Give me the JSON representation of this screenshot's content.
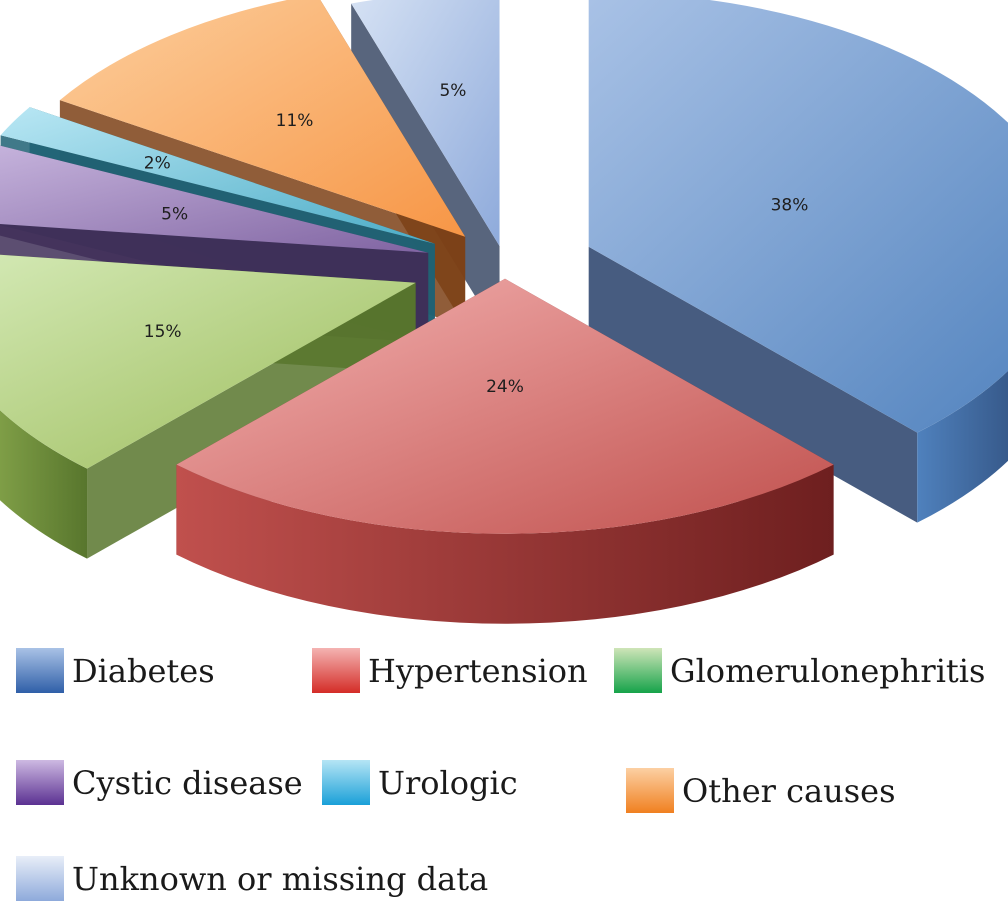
{
  "chart_data": {
    "type": "pie",
    "title": "",
    "categories": [
      "Diabetes",
      "Hypertension",
      "Glomerulonephritis",
      "Cystic disease",
      "Urologic",
      "Other causes",
      "Unknown or missing data"
    ],
    "values": [
      38,
      24,
      15,
      5,
      2,
      11,
      5
    ],
    "labels": [
      "38%",
      "24%",
      "15%",
      "5%",
      "2%",
      "11%",
      "5%"
    ],
    "unit": "%",
    "exploded": true,
    "three_d": true,
    "legend_position": "bottom",
    "colors": {
      "Diabetes": "#4f81bd",
      "Hypertension": "#c0504d",
      "Glomerulonephritis": "#9bbb59",
      "Cystic disease": "#8064a2",
      "Urologic": "#4bacc6",
      "Other causes": "#f79646",
      "Unknown or missing data": "#8eaadb"
    }
  }
}
